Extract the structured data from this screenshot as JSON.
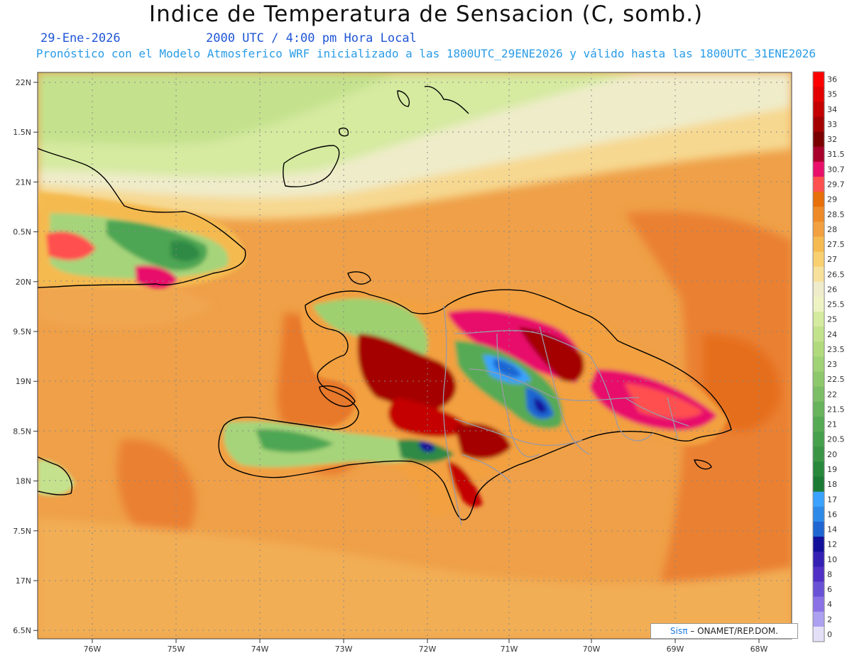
{
  "header": {
    "title": "Indice de Temperatura de Sensacion (C, somb.)",
    "date": "29-Ene-2026",
    "time": "2000 UTC / 4:00 pm Hora Local",
    "model": "Pronóstico con el Modelo Atmosferico WRF inicializado a las 1800UTC_29ENE2026 y válido hasta las  1800UTC_31ENE2026"
  },
  "axes": {
    "lat_labels": [
      "22N",
      "1.5N",
      "21N",
      "0.5N",
      "20N",
      "9.5N",
      "19N",
      "8.5N",
      "18N",
      "7.5N",
      "17N",
      "6.5N"
    ],
    "lon_labels": [
      "76W",
      "75W",
      "74W",
      "73W",
      "72W",
      "71W",
      "70W",
      "69W",
      "68W"
    ]
  },
  "colorbar": {
    "labels": [
      "36",
      "35",
      "34",
      "33",
      "32",
      "31.5",
      "30.7",
      "29.7",
      "29",
      "28.5",
      "28",
      "27.5",
      "27",
      "26.5",
      "26",
      "25.5",
      "25",
      "24",
      "23.5",
      "23",
      "22.5",
      "22",
      "21.5",
      "21",
      "20.5",
      "20",
      "19",
      "18",
      "17",
      "16",
      "14",
      "12",
      "10",
      "8",
      "6",
      "4",
      "2",
      "0"
    ],
    "colors": [
      "#fe0000",
      "#e20000",
      "#c40000",
      "#a50000",
      "#7a0000",
      "#a8002a",
      "#e8106a",
      "#ff5050",
      "#e8700a",
      "#ee8a28",
      "#f2a040",
      "#f5ba50",
      "#f8d070",
      "#f7e09a",
      "#efeccc",
      "#eef3c4",
      "#d4ea9e",
      "#c2e28c",
      "#b0da7c",
      "#a0d276",
      "#8ec86c",
      "#7cbe66",
      "#68b45c",
      "#56aa54",
      "#46a04c",
      "#3a9646",
      "#27883c",
      "#1b7a34",
      "#3aa3ff",
      "#2e8ae8",
      "#1f66d2",
      "#12109a",
      "#3520b4",
      "#5030c6",
      "#6a52d6",
      "#8a72e6",
      "#aca0f0",
      "#e4e0f8"
    ]
  },
  "footer": {
    "brand": "Sis",
    "brand_symbol": "π",
    "credit": " ONAMET/REP.DOM."
  }
}
